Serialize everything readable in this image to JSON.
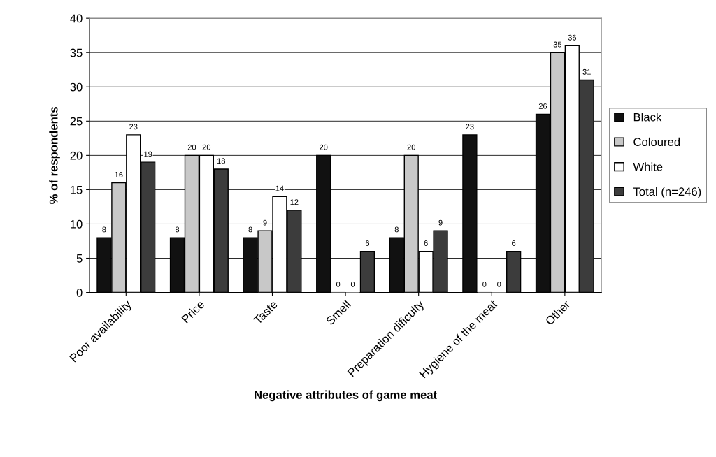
{
  "chart_data": {
    "type": "bar",
    "xlabel": "Negative attributes of game meat",
    "ylabel": "% of respondents",
    "categories": [
      "Poor availability",
      "Price",
      "Taste",
      "Smell",
      "Preparation dificulty",
      "Hygiene of the meat",
      "Other"
    ],
    "series": [
      {
        "name": "Black",
        "color": "#111111",
        "values": [
          8,
          8,
          8,
          20,
          8,
          23,
          26
        ]
      },
      {
        "name": "Coloured",
        "color": "#c8c8c8",
        "values": [
          16,
          20,
          9,
          0,
          20,
          0,
          35
        ]
      },
      {
        "name": "White",
        "color": "#ffffff",
        "values": [
          23,
          20,
          14,
          0,
          6,
          0,
          36
        ]
      },
      {
        "name": "Total (n=246)",
        "color": "#3c3c3c",
        "values": [
          19,
          18,
          12,
          6,
          9,
          6,
          31
        ]
      }
    ],
    "ylim": [
      0,
      40
    ],
    "yticks": [
      0,
      5,
      10,
      15,
      20,
      25,
      30,
      35,
      40
    ],
    "grid": "y",
    "legend": "right",
    "data_labels": true
  }
}
